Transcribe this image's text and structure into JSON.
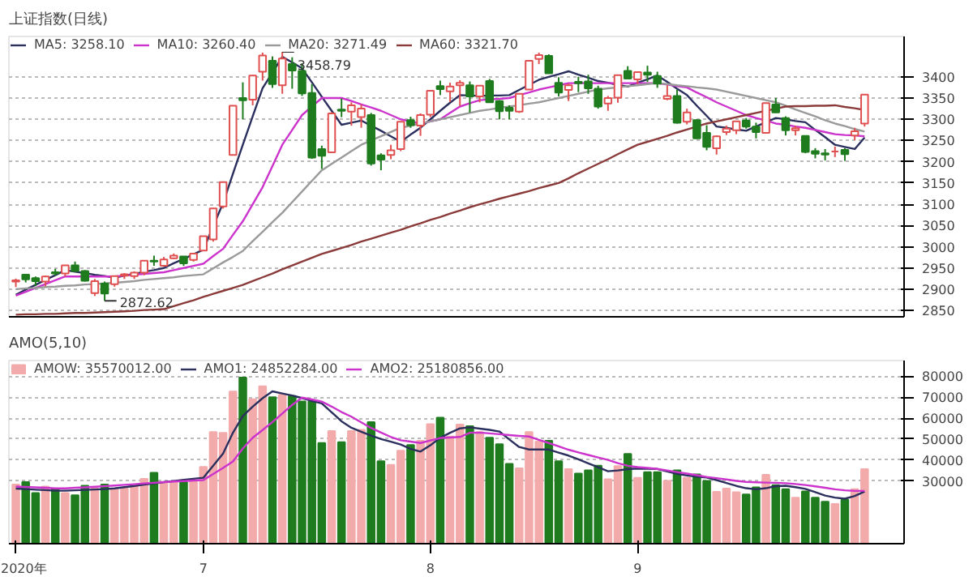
{
  "chart_data": [
    {
      "type": "candlestick",
      "title": "上证指数(日线)",
      "categories": [
        null,
        null,
        null,
        null,
        null,
        null,
        null,
        null,
        null,
        null,
        null,
        null,
        null,
        null,
        null,
        null,
        null,
        null,
        null,
        null,
        null,
        null,
        null,
        null,
        null,
        null,
        null,
        null,
        null,
        null,
        null,
        null,
        null,
        null,
        null,
        null,
        null,
        null,
        null,
        null,
        null,
        null,
        null,
        null,
        null,
        null,
        null,
        null,
        null,
        null,
        null,
        null,
        null,
        null,
        null,
        null,
        null,
        null,
        null,
        null,
        null,
        null,
        null,
        null,
        null,
        null,
        null,
        null,
        null,
        null,
        null,
        null,
        null,
        null,
        null,
        null,
        null,
        null,
        null,
        null,
        null,
        null,
        null,
        null,
        null,
        null,
        null
      ],
      "ohlc": [
        [
          2918,
          2925,
          2905,
          2921
        ],
        [
          2934,
          2935,
          2916,
          2923
        ],
        [
          2926,
          2930,
          2907,
          2919
        ],
        [
          2918,
          2932,
          2907,
          2930
        ],
        [
          2940,
          2948,
          2932,
          2937
        ],
        [
          2937,
          2957,
          2930,
          2956
        ],
        [
          2956,
          2965,
          2941,
          2943
        ],
        [
          2943,
          2945,
          2918,
          2920
        ],
        [
          2891,
          2924,
          2884,
          2919
        ],
        [
          2913,
          2918,
          2872.62,
          2890
        ],
        [
          2912,
          2931,
          2906,
          2931
        ],
        [
          2932,
          2938,
          2924,
          2935
        ],
        [
          2931,
          2942,
          2924,
          2939
        ],
        [
          2939,
          2968,
          2933,
          2967
        ],
        [
          2967,
          2979,
          2955,
          2965
        ],
        [
          2955,
          2976,
          2953,
          2970
        ],
        [
          2973,
          2984,
          2971,
          2979
        ],
        [
          2977,
          2978,
          2955,
          2961
        ],
        [
          2969,
          2985,
          2965,
          2984
        ],
        [
          2991,
          3025,
          2990,
          3025
        ],
        [
          3017,
          3091,
          3012,
          3090
        ],
        [
          3095,
          3153,
          3090,
          3152
        ],
        [
          3216,
          3333,
          3216,
          3332
        ],
        [
          3350,
          3387,
          3300,
          3345
        ],
        [
          3346,
          3404,
          3333,
          3403
        ],
        [
          3412,
          3457,
          3391,
          3450
        ],
        [
          3438,
          3448,
          3374,
          3383
        ],
        [
          3380,
          3458.79,
          3360,
          3443
        ],
        [
          3430,
          3446,
          3372,
          3415
        ],
        [
          3414,
          3432,
          3355,
          3361
        ],
        [
          3362,
          3383,
          3207,
          3210
        ],
        [
          3230,
          3238,
          3183,
          3214
        ],
        [
          3222,
          3317,
          3222,
          3314
        ],
        [
          3323,
          3349,
          3305,
          3320
        ],
        [
          3318,
          3340,
          3285,
          3333
        ],
        [
          3305,
          3335,
          3280,
          3325
        ],
        [
          3310,
          3315,
          3191,
          3196
        ],
        [
          3215,
          3220,
          3180,
          3205
        ],
        [
          3216,
          3240,
          3206,
          3227
        ],
        [
          3230,
          3295,
          3225,
          3294
        ],
        [
          3298,
          3306,
          3280,
          3286
        ],
        [
          3285,
          3314,
          3261,
          3310
        ],
        [
          3311,
          3368,
          3305,
          3367
        ],
        [
          3378,
          3391,
          3357,
          3371
        ],
        [
          3366,
          3386,
          3341,
          3377
        ],
        [
          3380,
          3392,
          3331,
          3386
        ],
        [
          3380,
          3389,
          3316,
          3354
        ],
        [
          3354,
          3380,
          3340,
          3379
        ],
        [
          3390,
          3395,
          3340,
          3340
        ],
        [
          3343,
          3345,
          3300,
          3319
        ],
        [
          3327,
          3333,
          3300,
          3320
        ],
        [
          3318,
          3361,
          3315,
          3360
        ],
        [
          3370,
          3439,
          3370,
          3438
        ],
        [
          3442,
          3457,
          3430,
          3451
        ],
        [
          3449,
          3453,
          3408,
          3408
        ],
        [
          3386,
          3399,
          3354,
          3363
        ],
        [
          3369,
          3384,
          3343,
          3380
        ],
        [
          3388,
          3400,
          3364,
          3385
        ],
        [
          3389,
          3405,
          3360,
          3373
        ],
        [
          3372,
          3379,
          3325,
          3330
        ],
        [
          3337,
          3355,
          3320,
          3350
        ],
        [
          3351,
          3405,
          3339,
          3404
        ],
        [
          3414,
          3425,
          3395,
          3396
        ],
        [
          3394,
          3412,
          3383,
          3411
        ],
        [
          3410,
          3426,
          3388,
          3405
        ],
        [
          3402,
          3412,
          3374,
          3384
        ],
        [
          3348,
          3380,
          3345,
          3355
        ],
        [
          3355,
          3370,
          3290,
          3292
        ],
        [
          3294,
          3325,
          3288,
          3316
        ],
        [
          3298,
          3300,
          3254,
          3255
        ],
        [
          3268,
          3286,
          3227,
          3235
        ],
        [
          3232,
          3262,
          3217,
          3260
        ],
        [
          3270,
          3285,
          3263,
          3278
        ],
        [
          3274,
          3296,
          3265,
          3295
        ],
        [
          3297,
          3303,
          3278,
          3283
        ],
        [
          3283,
          3292,
          3255,
          3270
        ],
        [
          3268,
          3339,
          3266,
          3338
        ],
        [
          3335,
          3350,
          3315,
          3316
        ],
        [
          3303,
          3307,
          3262,
          3274
        ],
        [
          3274,
          3285,
          3262,
          3279
        ],
        [
          3261,
          3262,
          3220,
          3223
        ],
        [
          3225,
          3232,
          3208,
          3219
        ],
        [
          3220,
          3230,
          3203,
          3217
        ],
        [
          3224,
          3236,
          3211,
          3224
        ],
        [
          3228,
          3232,
          3202,
          3218
        ],
        [
          3262,
          3280,
          3251,
          3272
        ],
        [
          3290,
          3359,
          3283,
          3358
        ]
      ],
      "series": [
        {
          "name": "MA5: 3258.10",
          "type": "line",
          "color": "#2b2f5e",
          "values": [
            2887,
            2899,
            2910,
            2922,
            2933,
            2945,
            2941,
            2938,
            2934,
            2931,
            2927,
            2932,
            2936,
            2941,
            2945,
            2950,
            2961,
            2971,
            2982,
            2993,
            3048,
            3103,
            3172,
            3240,
            3307,
            3373,
            3410,
            3447,
            3434,
            3420,
            3387,
            3353,
            3320,
            3287,
            3292,
            3297,
            3285,
            3273,
            3260,
            3247,
            3264,
            3280,
            3300,
            3320,
            3339,
            3357,
            3356,
            3355,
            3356,
            3356,
            3357,
            3369,
            3381,
            3393,
            3400,
            3406,
            3413,
            3405,
            3398,
            3390,
            3386,
            3381,
            3377,
            3386,
            3394,
            3403,
            3388,
            3372,
            3357,
            3332,
            3308,
            3283,
            3280,
            3276,
            3273,
            3283,
            3293,
            3303,
            3300,
            3296,
            3293,
            3275,
            3258,
            3240,
            3235,
            3230,
            3257
          ]
        },
        {
          "name": "MA10: 3260.40",
          "type": "line",
          "color": "#cc33cc",
          "values": [
            2885,
            2894,
            2903,
            2912,
            2921,
            2930,
            2930,
            2930,
            2930,
            2930,
            2930,
            2932,
            2934,
            2936,
            2938,
            2940,
            2945,
            2950,
            2955,
            2960,
            2978,
            2995,
            3028,
            3060,
            3100,
            3140,
            3190,
            3240,
            3275,
            3310,
            3330,
            3350,
            3350,
            3350,
            3343,
            3335,
            3328,
            3320,
            3310,
            3300,
            3295,
            3290,
            3295,
            3300,
            3315,
            3330,
            3338,
            3345,
            3347,
            3348,
            3350,
            3357,
            3363,
            3370,
            3375,
            3380,
            3385,
            3385,
            3385,
            3385,
            3385,
            3385,
            3385,
            3385,
            3385,
            3385,
            3382,
            3378,
            3375,
            3363,
            3352,
            3340,
            3330,
            3320,
            3310,
            3303,
            3297,
            3290,
            3287,
            3283,
            3280,
            3275,
            3270,
            3265,
            3263,
            3262,
            3260
          ]
        },
        {
          "name": "MA20: 3271.49",
          "type": "line",
          "color": "#9a9a9a",
          "values": [
            2900,
            2902,
            2903,
            2905,
            2906,
            2908,
            2909,
            2911,
            2912,
            2914,
            2915,
            2917,
            2919,
            2922,
            2924,
            2926,
            2928,
            2931,
            2933,
            2935,
            2949,
            2963,
            2976,
            2990,
            3013,
            3035,
            3058,
            3080,
            3105,
            3130,
            3155,
            3180,
            3195,
            3210,
            3225,
            3240,
            3250,
            3260,
            3270,
            3280,
            3285,
            3290,
            3295,
            3300,
            3305,
            3310,
            3315,
            3320,
            3323,
            3327,
            3330,
            3333,
            3337,
            3340,
            3345,
            3350,
            3355,
            3360,
            3365,
            3370,
            3373,
            3375,
            3378,
            3380,
            3383,
            3385,
            3383,
            3380,
            3378,
            3375,
            3373,
            3370,
            3365,
            3360,
            3355,
            3350,
            3345,
            3340,
            3332,
            3323,
            3315,
            3307,
            3298,
            3290,
            3284,
            3277,
            3271
          ]
        },
        {
          "name": "MA60: 3321.70",
          "type": "line",
          "color": "#8b3a3a",
          "values": [
            2840,
            2841,
            2841,
            2842,
            2842,
            2843,
            2844,
            2844,
            2845,
            2846,
            2847,
            2848,
            2849,
            2851,
            2852,
            2853,
            2860,
            2867,
            2874,
            2882,
            2889,
            2896,
            2903,
            2910,
            2919,
            2928,
            2937,
            2947,
            2956,
            2965,
            2974,
            2983,
            2990,
            2997,
            3004,
            3012,
            3019,
            3026,
            3033,
            3040,
            3048,
            3055,
            3063,
            3070,
            3078,
            3085,
            3093,
            3100,
            3106,
            3113,
            3119,
            3125,
            3131,
            3138,
            3144,
            3150,
            3161,
            3173,
            3184,
            3195,
            3206,
            3218,
            3229,
            3240,
            3247,
            3254,
            3261,
            3269,
            3276,
            3283,
            3290,
            3295,
            3300,
            3305,
            3310,
            3315,
            3320,
            3325,
            3330,
            3331,
            3331,
            3332,
            3332,
            3333,
            3329,
            3326,
            3322
          ]
        }
      ],
      "ylim": [
        2835,
        3495
      ],
      "yticks": [
        2850,
        2900,
        2950,
        3000,
        3050,
        3100,
        3150,
        3200,
        3250,
        3300,
        3350,
        3400
      ],
      "grid": "y",
      "legend": "top left",
      "annotations": [
        "3458.79",
        "2872.62"
      ]
    },
    {
      "type": "bar",
      "title": "AMO(5,10)",
      "categories": [
        "2020年",
        null,
        null,
        null,
        null,
        null,
        null,
        null,
        null,
        null,
        null,
        null,
        null,
        null,
        null,
        null,
        null,
        null,
        null,
        "7",
        null,
        null,
        null,
        null,
        null,
        null,
        null,
        null,
        null,
        null,
        null,
        null,
        null,
        null,
        null,
        null,
        null,
        null,
        null,
        null,
        null,
        null,
        "8",
        null,
        null,
        null,
        null,
        null,
        null,
        null,
        null,
        null,
        null,
        null,
        null,
        null,
        null,
        null,
        null,
        null,
        null,
        null,
        null,
        "9",
        null,
        null,
        null,
        null,
        null,
        null,
        null,
        null,
        null,
        null,
        null,
        null,
        null,
        null,
        null,
        null,
        null,
        null,
        null,
        null,
        null,
        null,
        null
      ],
      "series": [
        {
          "name": "AMOW: 35570012.00",
          "type": "bar",
          "values": [
            28300,
            29400,
            24200,
            27300,
            26300,
            24200,
            23100,
            27700,
            26300,
            28300,
            26300,
            26300,
            27300,
            31000,
            33900,
            29400,
            29400,
            29400,
            30400,
            36700,
            53300,
            52900,
            72700,
            79400,
            69000,
            75200,
            70000,
            71100,
            70600,
            67900,
            67900,
            48100,
            53800,
            48500,
            53800,
            54400,
            58100,
            39400,
            37700,
            44400,
            47100,
            49200,
            57100,
            60200,
            51200,
            56900,
            56100,
            53300,
            50600,
            47500,
            38100,
            36000,
            53300,
            48800,
            49200,
            39400,
            35600,
            33500,
            35000,
            37300,
            30800,
            37100,
            42900,
            31500,
            34200,
            34200,
            30000,
            35000,
            31500,
            33100,
            30000,
            24800,
            26300,
            24600,
            23500,
            26900,
            32900,
            28000,
            26000,
            22000,
            25000,
            22000,
            20000,
            19000,
            21000,
            26000,
            35600
          ],
          "colors": [
            "#f2aaaa",
            "#1e7b1e",
            "#1e7b1e",
            "#f2aaaa",
            "#1e7b1e",
            "#f2aaaa",
            "#1e7b1e",
            "#1e7b1e",
            "#f2aaaa",
            "#1e7b1e",
            "#f2aaaa",
            "#f2aaaa",
            "#f2aaaa",
            "#f2aaaa",
            "#1e7b1e",
            "#f2aaaa",
            "#f2aaaa",
            "#1e7b1e",
            "#f2aaaa",
            "#f2aaaa",
            "#f2aaaa",
            "#f2aaaa",
            "#f2aaaa",
            "#1e7b1e",
            "#f2aaaa",
            "#f2aaaa",
            "#1e7b1e",
            "#f2aaaa",
            "#1e7b1e",
            "#1e7b1e",
            "#1e7b1e",
            "#1e7b1e",
            "#f2aaaa",
            "#1e7b1e",
            "#f2aaaa",
            "#f2aaaa",
            "#1e7b1e",
            "#1e7b1e",
            "#f2aaaa",
            "#f2aaaa",
            "#1e7b1e",
            "#f2aaaa",
            "#f2aaaa",
            "#1e7b1e",
            "#f2aaaa",
            "#f2aaaa",
            "#1e7b1e",
            "#f2aaaa",
            "#1e7b1e",
            "#1e7b1e",
            "#1e7b1e",
            "#f2aaaa",
            "#f2aaaa",
            "#f2aaaa",
            "#1e7b1e",
            "#1e7b1e",
            "#f2aaaa",
            "#1e7b1e",
            "#1e7b1e",
            "#1e7b1e",
            "#f2aaaa",
            "#f2aaaa",
            "#1e7b1e",
            "#f2aaaa",
            "#1e7b1e",
            "#1e7b1e",
            "#f2aaaa",
            "#1e7b1e",
            "#f2aaaa",
            "#1e7b1e",
            "#1e7b1e",
            "#f2aaaa",
            "#f2aaaa",
            "#f2aaaa",
            "#1e7b1e",
            "#1e7b1e",
            "#f2aaaa",
            "#1e7b1e",
            "#1e7b1e",
            "#f2aaaa",
            "#1e7b1e",
            "#1e7b1e",
            "#1e7b1e",
            "#f2aaaa",
            "#1e7b1e",
            "#f2aaaa",
            "#f2aaaa"
          ]
        },
        {
          "name": "AMO1: 24852284.00",
          "type": "line",
          "color": "#2b2f5e",
          "values": [
            26300,
            26100,
            25800,
            25600,
            25300,
            25300,
            25500,
            25700,
            25900,
            26100,
            26400,
            27000,
            27600,
            28200,
            28800,
            29400,
            29900,
            30500,
            31000,
            31500,
            37300,
            43100,
            53000,
            61000,
            65500,
            69500,
            72800,
            71800,
            70800,
            69600,
            68200,
            67000,
            62800,
            58500,
            55400,
            53500,
            51600,
            50000,
            48700,
            47400,
            45300,
            44000,
            47000,
            50600,
            53000,
            55100,
            55600,
            55000,
            54400,
            53600,
            49800,
            46200,
            45000,
            45000,
            45000,
            43500,
            42100,
            40300,
            38400,
            36500,
            34600,
            35000,
            35600,
            35900,
            35800,
            35700,
            34500,
            33400,
            32600,
            32000,
            31600,
            30400,
            29000,
            27600,
            26500,
            26000,
            26500,
            27500,
            27700,
            27000,
            26200,
            24600,
            23000,
            22000,
            21500,
            22800,
            24900
          ]
        },
        {
          "name": "AMO2: 25180856.00",
          "type": "line",
          "color": "#cc33cc",
          "values": [
            27300,
            27100,
            26900,
            26700,
            26400,
            26400,
            26700,
            26900,
            27200,
            27500,
            27800,
            28100,
            28400,
            28800,
            29100,
            29400,
            29700,
            29900,
            30200,
            30400,
            33300,
            36200,
            39300,
            45500,
            50600,
            54300,
            58100,
            62200,
            66300,
            69800,
            68900,
            67900,
            65500,
            62900,
            60700,
            58000,
            55300,
            53100,
            51000,
            49400,
            48800,
            48100,
            49300,
            50500,
            50700,
            51000,
            53000,
            53100,
            52700,
            52300,
            51900,
            51500,
            51200,
            49600,
            48100,
            46500,
            44900,
            43600,
            42400,
            41200,
            40000,
            38500,
            37200,
            36600,
            36200,
            35700,
            35000,
            34200,
            33500,
            32700,
            31900,
            31300,
            30700,
            30000,
            29500,
            29300,
            29200,
            29100,
            28900,
            28500,
            28000,
            27400,
            26700,
            26000,
            25500,
            25200,
            25200
          ]
        }
      ],
      "ylim": [
        0,
        87500
      ],
      "yticks": [
        30000,
        40000,
        50000,
        60000,
        70000,
        80000
      ],
      "grid": "y",
      "legend": "top left"
    }
  ]
}
